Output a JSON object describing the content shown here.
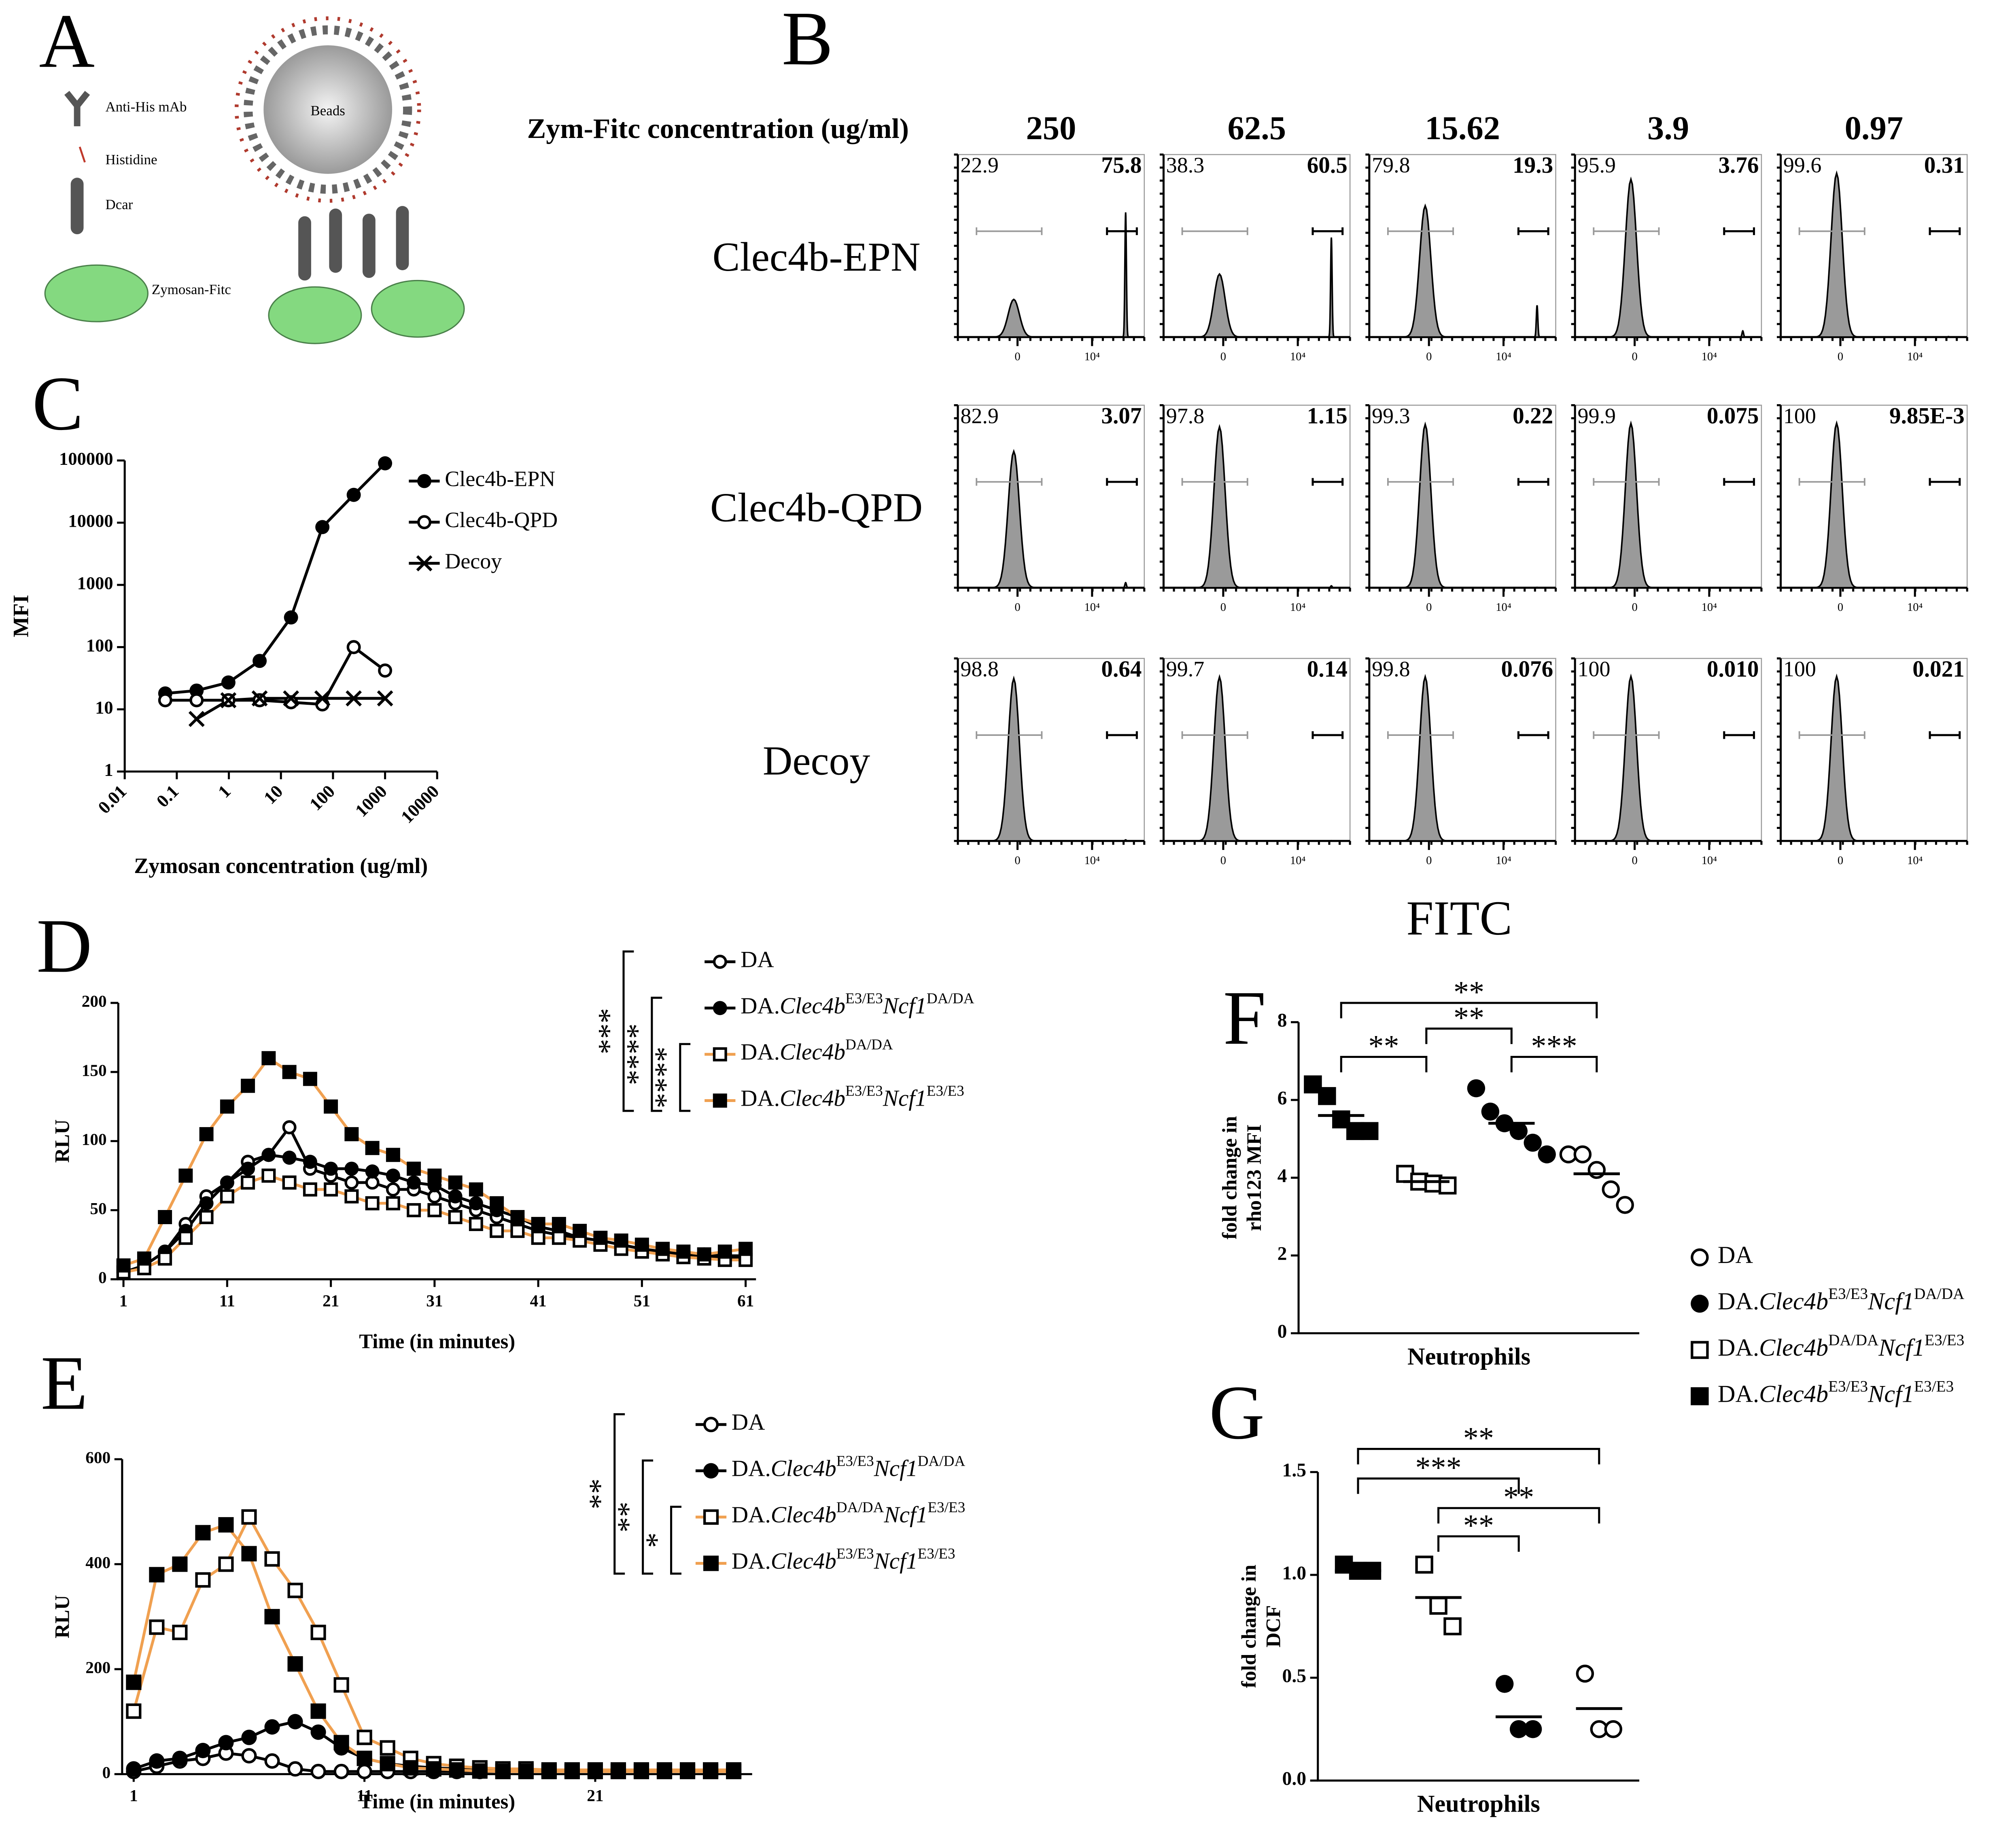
{
  "panel_labels": [
    "A",
    "B",
    "C",
    "D",
    "E",
    "F",
    "G"
  ],
  "diagram": {
    "antibody": "Anti-His mAb",
    "histidine": "Histidine",
    "dcar": "Dcar",
    "zymosan": "Zymosan-Fitc",
    "beads": "Beads"
  },
  "chart_data": [
    {
      "type": "line",
      "xlog": true,
      "ylog": true,
      "xlabel": "Zymosan concentration (ug/ml)",
      "ylabel": "MFI",
      "x": [
        0.06,
        0.24,
        0.98,
        3.9,
        15.62,
        62.5,
        250,
        1000
      ],
      "xlim": [
        0.01,
        10000
      ],
      "xticks": [
        0.01,
        0.1,
        1,
        10,
        100,
        1000,
        10000
      ],
      "ylim": [
        1,
        100000
      ],
      "yticks": [
        1,
        10,
        100,
        1000,
        10000,
        100000
      ],
      "series": [
        {
          "name": "Clec4b-EPN",
          "marker": "filled-circle",
          "color": "#000000",
          "values": [
            18,
            20,
            27,
            60,
            300,
            8500,
            28000,
            90000
          ]
        },
        {
          "name": "Clec4b-QPD",
          "marker": "open-circle",
          "color": "#000000",
          "values": [
            14,
            14,
            14,
            14,
            13,
            12,
            100,
            42
          ]
        },
        {
          "name": "Decoy",
          "marker": "cross",
          "color": "#000000",
          "values": [
            null,
            7,
            14,
            15,
            15,
            15,
            15,
            15
          ]
        }
      ]
    },
    {
      "type": "flow-histogram",
      "title": "Zym-Fitc concentration (ug/ml)",
      "columns": [
        "250",
        "62.5",
        "15.62",
        "3.9",
        "0.97"
      ],
      "xticks": [
        0,
        {
          "value": 10000,
          "label": "10⁴"
        }
      ],
      "rows": [
        {
          "name": "Clec4b-EPN",
          "left_values": [
            22.9,
            38.3,
            79.8,
            95.9,
            99.6
          ],
          "right_values": [
            75.8,
            60.5,
            19.3,
            3.76,
            0.31
          ],
          "right_color": "#e8191c"
        },
        {
          "name": "Clec4b-QPD",
          "left_values": [
            82.9,
            97.8,
            99.3,
            99.9,
            100
          ],
          "right_values": [
            3.07,
            1.15,
            0.22,
            0.075,
            0.00985
          ],
          "right_value_labels": [
            "3.07",
            "1.15",
            "0.22",
            "0.075",
            "9.85E-3"
          ],
          "right_color": "#000000"
        },
        {
          "name": "Decoy",
          "left_values": [
            98.8,
            99.7,
            99.8,
            100,
            100
          ],
          "right_values": [
            0.64,
            0.14,
            0.076,
            0.01,
            0.021
          ],
          "right_value_labels": [
            "0.64",
            "0.14",
            "0.076",
            "0.010",
            "0.021"
          ],
          "right_color": "#000000"
        }
      ]
    },
    {
      "type": "line",
      "xlabel": "Time (in minutes)",
      "ylabel": "RLU",
      "x": [
        1,
        3,
        5,
        7,
        9,
        11,
        13,
        15,
        17,
        19,
        21,
        23,
        25,
        27,
        29,
        31,
        33,
        35,
        37,
        39,
        41,
        43,
        45,
        47,
        49,
        51,
        53,
        55,
        57,
        59,
        61
      ],
      "xlim": [
        0.5,
        62
      ],
      "xticks": [
        1,
        11,
        21,
        31,
        41,
        51,
        61
      ],
      "ylim": [
        0,
        200
      ],
      "yticks": [
        0,
        50,
        100,
        150,
        200
      ],
      "series": [
        {
          "name": [
            "DA"
          ],
          "marker": "open-circle",
          "color": "#000000",
          "values": [
            5,
            10,
            20,
            40,
            60,
            70,
            85,
            90,
            110,
            80,
            75,
            70,
            70,
            65,
            65,
            60,
            55,
            50,
            45,
            40,
            35,
            32,
            30,
            28,
            25,
            22,
            20,
            18,
            18,
            17,
            17
          ]
        },
        {
          "name": [
            "DA.",
            "Clec4b",
            "E3/E3",
            "Ncf1",
            "DA/DA"
          ],
          "marker": "filled-circle",
          "color": "#000000",
          "values": [
            5,
            10,
            20,
            35,
            55,
            70,
            80,
            90,
            88,
            85,
            80,
            80,
            78,
            75,
            70,
            68,
            60,
            55,
            50,
            45,
            38,
            35,
            30,
            28,
            25,
            22,
            20,
            18,
            17,
            16,
            15
          ]
        },
        {
          "name": [
            "DA.",
            "Clec4b",
            "DA/DA"
          ],
          "marker": "open-square",
          "color": "#f0a050",
          "values": [
            5,
            8,
            15,
            30,
            45,
            60,
            70,
            75,
            70,
            65,
            65,
            60,
            55,
            55,
            50,
            50,
            45,
            40,
            35,
            35,
            30,
            30,
            28,
            25,
            22,
            20,
            18,
            16,
            15,
            14,
            14
          ]
        },
        {
          "name": [
            "DA.",
            "Clec4b",
            "E3/E3",
            "Ncf1",
            "E3/E3"
          ],
          "marker": "filled-square",
          "color": "#f0a050",
          "values": [
            10,
            15,
            45,
            75,
            105,
            125,
            140,
            160,
            150,
            145,
            125,
            105,
            95,
            90,
            80,
            75,
            70,
            65,
            55,
            45,
            40,
            40,
            35,
            30,
            28,
            25,
            22,
            20,
            18,
            20,
            22
          ]
        }
      ],
      "significance": [
        {
          "rows": [
            0,
            3
          ],
          "label": "***"
        },
        {
          "rows": [
            1,
            3
          ],
          "label": "****"
        },
        {
          "rows": [
            2,
            3
          ],
          "label": "****"
        }
      ]
    },
    {
      "type": "line",
      "xlabel": "Time (in minutes)",
      "ylabel": "RLU",
      "x": [
        1,
        2,
        3,
        4,
        5,
        6,
        7,
        8,
        9,
        10,
        11,
        12,
        13,
        14,
        15,
        16,
        17,
        18,
        19,
        20,
        21,
        22,
        23,
        24,
        25,
        26,
        27
      ],
      "xlim": [
        0.5,
        27.8
      ],
      "xticks": [
        1,
        11,
        21
      ],
      "ylim": [
        0,
        600
      ],
      "yticks": [
        0,
        200,
        400,
        600
      ],
      "series": [
        {
          "name": [
            "DA"
          ],
          "marker": "open-circle",
          "color": "#000000",
          "values": [
            5,
            15,
            25,
            30,
            40,
            35,
            25,
            10,
            5,
            5,
            5,
            5,
            5,
            5,
            5,
            5,
            5,
            5,
            5,
            5,
            5,
            5,
            5,
            5,
            5,
            5,
            5
          ]
        },
        {
          "name": [
            "DA.",
            "Clec4b",
            "E3/E3",
            "Ncf1",
            "DA/DA"
          ],
          "marker": "filled-circle",
          "color": "#000000",
          "values": [
            10,
            25,
            30,
            45,
            60,
            70,
            90,
            100,
            80,
            50,
            30,
            20,
            15,
            12,
            10,
            10,
            10,
            8,
            8,
            8,
            8,
            8,
            8,
            8,
            8,
            8,
            8
          ]
        },
        {
          "name": [
            "DA.",
            "Clec4b",
            "DA/DA",
            "Ncf1",
            "E3/E3"
          ],
          "marker": "open-square",
          "color": "#f0a050",
          "values": [
            120,
            280,
            270,
            370,
            400,
            490,
            410,
            350,
            270,
            170,
            70,
            50,
            30,
            20,
            15,
            12,
            10,
            10,
            8,
            8,
            8,
            8,
            8,
            8,
            8,
            8,
            8
          ]
        },
        {
          "name": [
            "DA.",
            "Clec4b",
            "E3/E3",
            "Ncf1",
            "E3/E3"
          ],
          "marker": "filled-square",
          "color": "#f0a050",
          "values": [
            175,
            380,
            400,
            460,
            475,
            420,
            300,
            210,
            120,
            60,
            30,
            20,
            12,
            10,
            8,
            6,
            5,
            5,
            5,
            5,
            5,
            5,
            5,
            5,
            5,
            5,
            5
          ]
        }
      ],
      "significance": [
        {
          "rows": [
            0,
            3
          ],
          "label": "**"
        },
        {
          "rows": [
            1,
            3
          ],
          "label": "**"
        },
        {
          "rows": [
            2,
            3
          ],
          "label": "*"
        }
      ]
    },
    {
      "type": "dot",
      "title": "FITC",
      "xlabel": "Neutrophils",
      "ylabel": [
        "fold change in",
        "rho123 MFI"
      ],
      "ylim": [
        0,
        8
      ],
      "yticks": [
        0,
        2,
        4,
        6,
        8
      ],
      "series": [
        {
          "name": [
            "DA"
          ],
          "marker": "open-circle",
          "values": [
            4.6,
            4.6,
            4.2,
            3.7,
            3.3
          ],
          "mean": 4.1
        },
        {
          "name": [
            "DA.",
            "Clec4b",
            "E3/E3",
            "Ncf1",
            "DA/DA"
          ],
          "marker": "filled-circle",
          "values": [
            6.3,
            5.7,
            5.4,
            5.2,
            4.9,
            4.6
          ],
          "mean": 5.4
        },
        {
          "name": [
            "DA.",
            "Clec4b",
            "DA/DA",
            "Ncf1",
            "E3/E3"
          ],
          "marker": "open-square",
          "values": [
            4.1,
            3.9,
            3.85,
            3.8
          ],
          "mean": 3.9
        },
        {
          "name": [
            "DA.",
            "Clec4b",
            "E3/E3",
            "Ncf1",
            "E3/E3"
          ],
          "marker": "filled-square",
          "values": [
            6.4,
            6.1,
            5.5,
            5.2,
            5.2
          ],
          "mean": 5.6
        }
      ],
      "brackets": [
        {
          "from": 0,
          "to": 3,
          "label": "**"
        },
        {
          "from": 0,
          "to": 1,
          "label": "**"
        },
        {
          "from": 1,
          "to": 2,
          "label": "**"
        },
        {
          "from": 2,
          "to": 3,
          "label": "***"
        }
      ]
    },
    {
      "type": "dot",
      "xlabel": "Neutrophils",
      "ylabel": [
        "fold change in",
        "DCF"
      ],
      "ylim": [
        0,
        1.5
      ],
      "yticks": [
        {
          "value": 0,
          "label": "0.0"
        },
        0.5,
        {
          "value": 1,
          "label": "1.0"
        },
        1.5
      ],
      "series": [
        {
          "marker": "open-circle",
          "values": [
            0.52,
            0.25,
            0.25
          ],
          "mean": 0.35
        },
        {
          "marker": "filled-circle",
          "values": [
            0.47,
            0.25,
            0.25
          ],
          "mean": 0.31
        },
        {
          "marker": "open-square",
          "values": [
            1.05,
            0.85,
            0.75
          ],
          "mean": 0.89
        },
        {
          "marker": "filled-square",
          "values": [
            1.05,
            1.02,
            1.02
          ],
          "mean": 1.02
        }
      ],
      "brackets": [
        {
          "from": 0,
          "to": 3,
          "label": "**"
        },
        {
          "from": 0,
          "to": 2,
          "label": "***"
        },
        {
          "from": 1,
          "to": 3,
          "label": "**"
        },
        {
          "from": 1,
          "to": 2,
          "label": "**"
        }
      ]
    }
  ]
}
